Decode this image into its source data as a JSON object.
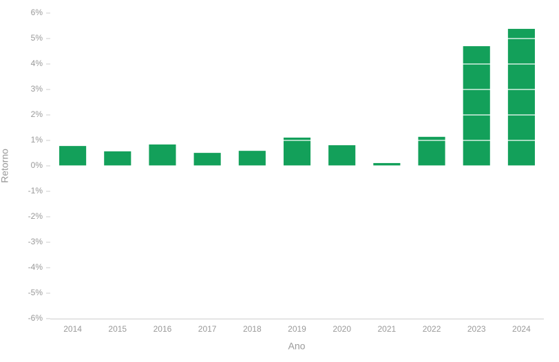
{
  "chart_data": {
    "type": "bar",
    "x_label": "Ano",
    "y_label": "Retorno",
    "categories": [
      "2014",
      "2015",
      "2016",
      "2017",
      "2018",
      "2019",
      "2020",
      "2021",
      "2022",
      "2023",
      "2024"
    ],
    "values": [
      0.78,
      0.57,
      0.84,
      0.51,
      0.59,
      1.11,
      0.81,
      0.11,
      1.14,
      4.7,
      5.38
    ],
    "color": "#13a05a",
    "ylim": [
      -6,
      6
    ],
    "yticks": [
      {
        "value": -6,
        "label": "-6%"
      },
      {
        "value": -5,
        "label": "-5%"
      },
      {
        "value": -4,
        "label": "-4%"
      },
      {
        "value": -3,
        "label": "-3%"
      },
      {
        "value": -2,
        "label": "-2%"
      },
      {
        "value": -1,
        "label": "-1%"
      },
      {
        "value": 0,
        "label": "0%"
      },
      {
        "value": 1,
        "label": "1%"
      },
      {
        "value": 2,
        "label": "2%"
      },
      {
        "value": 3,
        "label": "3%"
      },
      {
        "value": 4,
        "label": "4%"
      },
      {
        "value": 5,
        "label": "5%"
      },
      {
        "value": 6,
        "label": "6%"
      }
    ],
    "grid": true
  }
}
